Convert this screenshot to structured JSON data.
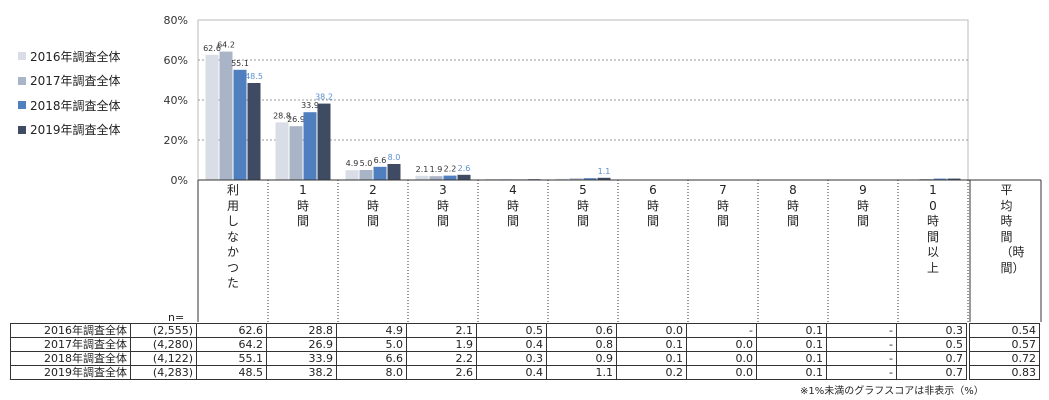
{
  "chart_data": {
    "type": "bar",
    "ylim": [
      0,
      80
    ],
    "yticks": [
      "0%",
      "20%",
      "40%",
      "60%",
      "80%"
    ],
    "grid": true,
    "legend_position": "left",
    "categories": [
      "利用しなかつた",
      "1時間",
      "2時間",
      "3時間",
      "4時間",
      "5時間",
      "6時間",
      "7時間",
      "8時間",
      "9時間",
      "10時間以上"
    ],
    "avg_header": "平均時間（時間）",
    "series": [
      {
        "name": "2016年調査全体",
        "n": "(2,555)",
        "color": "#d9dde6",
        "label_color": "#333333",
        "values": [
          62.6,
          28.8,
          4.9,
          2.1,
          0.5,
          0.6,
          0.0,
          null,
          0.1,
          null,
          0.3
        ],
        "avg": "0.54"
      },
      {
        "name": "2017年調査全体",
        "n": "(4,280)",
        "color": "#a9b4c6",
        "label_color": "#333333",
        "values": [
          64.2,
          26.9,
          5.0,
          1.9,
          0.4,
          0.8,
          0.1,
          0.0,
          0.1,
          null,
          0.5
        ],
        "avg": "0.57"
      },
      {
        "name": "2018年調査全体",
        "n": "(4,122)",
        "color": "#4f7fbf",
        "label_color": "#333333",
        "values": [
          55.1,
          33.9,
          6.6,
          2.2,
          0.3,
          0.9,
          0.1,
          0.0,
          0.1,
          null,
          0.7
        ],
        "avg": "0.72"
      },
      {
        "name": "2019年調査全体",
        "n": "(4,283)",
        "color": "#3e4b63",
        "label_color": "#5b8fd1",
        "values": [
          48.5,
          38.2,
          8.0,
          2.6,
          0.4,
          1.1,
          0.2,
          0.0,
          0.1,
          null,
          0.7
        ],
        "avg": "0.83"
      }
    ],
    "missing_symbol": "-",
    "n_label": "n=",
    "note": "※1%未満のグラフスコアは非表示（%）"
  }
}
